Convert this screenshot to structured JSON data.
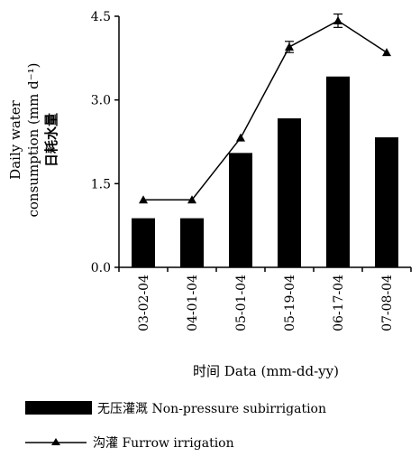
{
  "chart_data": {
    "type": "bar+line",
    "categories": [
      "03-02-04",
      "04-01-04",
      "05-01-04",
      "05-19-04",
      "06-17-04",
      "07-08-04"
    ],
    "series": [
      {
        "name": "无压灌溉 Non-pressure subirrigation",
        "kind": "bar",
        "values": [
          0.88,
          0.88,
          2.05,
          2.67,
          3.42,
          2.33
        ]
      },
      {
        "name": "沟灌 Furrow irrigation",
        "kind": "line",
        "marker": "triangle",
        "values": [
          1.21,
          1.21,
          2.32,
          3.95,
          4.42,
          3.85
        ],
        "error": [
          0,
          0,
          0,
          0.1,
          0.12,
          0
        ]
      }
    ],
    "ylim": [
      0,
      4.5
    ],
    "yticks": [
      "0.0",
      "1.5",
      "3.0",
      "4.5"
    ],
    "ylabel_lines": [
      "Daily water",
      "consumption (mm d⁻¹)",
      "日耗水量"
    ],
    "xlabel": "时间 Data (mm-dd-yy)",
    "legend": "below",
    "grid": false,
    "colors": {
      "bar": "#000000",
      "line": "#000000"
    }
  }
}
